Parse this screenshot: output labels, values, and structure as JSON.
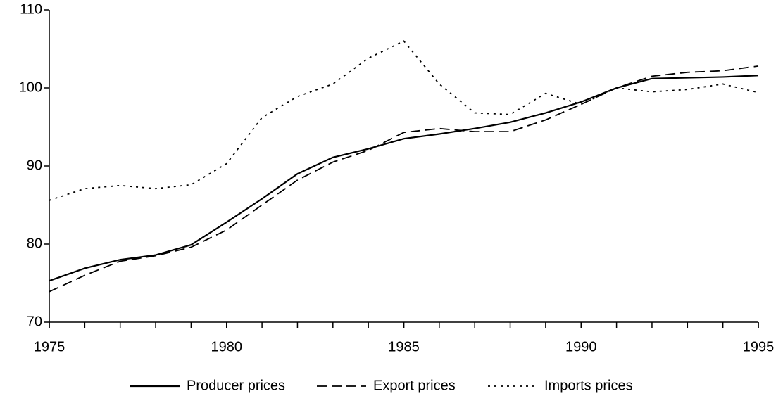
{
  "chart_data": {
    "type": "line",
    "x": [
      1975,
      1976,
      1977,
      1978,
      1979,
      1980,
      1981,
      1982,
      1983,
      1984,
      1985,
      1986,
      1987,
      1988,
      1989,
      1990,
      1991,
      1992,
      1993,
      1994,
      1995
    ],
    "series": [
      {
        "name": "Producer prices",
        "color": "#000000",
        "style": "solid",
        "values": [
          75.3,
          76.9,
          78.0,
          78.6,
          79.9,
          82.8,
          85.8,
          89.0,
          91.1,
          92.2,
          93.5,
          94.1,
          94.8,
          95.6,
          96.8,
          98.2,
          100,
          101.2,
          101.3,
          101.4,
          101.6
        ]
      },
      {
        "name": "Export prices",
        "color": "#000000",
        "style": "dashed",
        "values": [
          73.9,
          76.0,
          77.8,
          78.5,
          79.6,
          81.8,
          85.0,
          88.2,
          90.5,
          92.0,
          94.3,
          94.8,
          94.4,
          94.4,
          95.9,
          97.9,
          100,
          101.5,
          102.0,
          102.2,
          102.8
        ]
      },
      {
        "name": "Imports prices",
        "color": "#000000",
        "style": "dotted",
        "values": [
          85.6,
          87.1,
          87.5,
          87.1,
          87.6,
          90.3,
          96.2,
          98.9,
          100.5,
          103.8,
          106.0,
          100.5,
          96.8,
          96.6,
          99.3,
          97.9,
          100,
          99.5,
          99.8,
          100.5,
          99.4
        ]
      }
    ],
    "xlim": [
      1975,
      1995
    ],
    "xticks": [
      1975,
      1980,
      1985,
      1990,
      1995
    ],
    "ylim": [
      70,
      110
    ],
    "yticks": [
      70,
      80,
      90,
      100,
      110
    ],
    "grid": false,
    "legend": "bottom"
  }
}
